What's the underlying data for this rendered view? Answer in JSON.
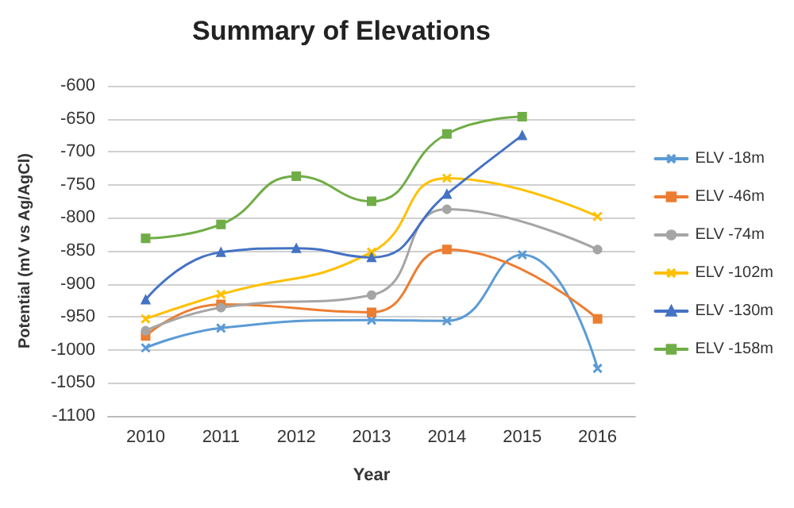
{
  "chart_data": {
    "type": "line",
    "title": "Summary of Elevations",
    "xlabel": "Year",
    "ylabel": "Potential (mV vs Ag/AgCl)",
    "categories": [
      "2010",
      "2011",
      "2012",
      "2013",
      "2014",
      "2015",
      "2016"
    ],
    "series": [
      {
        "name": "ELV -18m",
        "color": "#5b9bd5",
        "marker": "cross",
        "values": [
          -997,
          -967,
          null,
          -955,
          -956,
          -856,
          -1028
        ]
      },
      {
        "name": "ELV -46m",
        "color": "#ed7d31",
        "marker": "square",
        "values": [
          -979,
          -931,
          null,
          -943,
          -848,
          null,
          -953
        ]
      },
      {
        "name": "ELV -74m",
        "color": "#a5a5a5",
        "marker": "circle",
        "values": [
          -971,
          -936,
          null,
          -917,
          -787,
          null,
          -848
        ]
      },
      {
        "name": "ELV -102m",
        "color": "#ffc000",
        "marker": "cross",
        "values": [
          -953,
          -916,
          null,
          -852,
          -740,
          null,
          -798
        ]
      },
      {
        "name": "ELV -130m",
        "color": "#4472c4",
        "marker": "triangle",
        "values": [
          -924,
          -852,
          -846,
          -860,
          -764,
          -675,
          null
        ]
      },
      {
        "name": "ELV -158m",
        "color": "#70ad47",
        "marker": "square",
        "values": [
          -831,
          -810,
          -737,
          -775,
          -673,
          -647,
          null
        ]
      }
    ],
    "ylim": [
      -1100,
      -600
    ],
    "yticks": [
      -1100,
      -1050,
      -1000,
      -950,
      -900,
      -850,
      -800,
      -750,
      -700,
      -650,
      -600
    ],
    "grid": "y",
    "legend": "right",
    "line_style": "solid"
  }
}
